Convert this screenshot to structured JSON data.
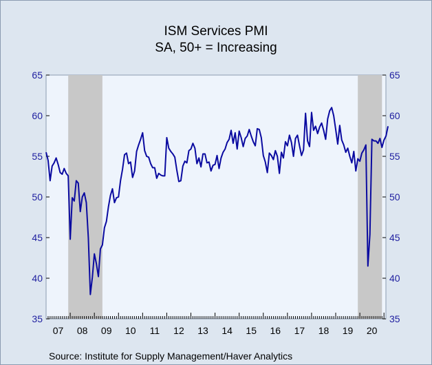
{
  "chart_data": {
    "type": "line",
    "title": "ISM Services PMI",
    "subtitle": "SA, 50+ = Increasing",
    "source": "Source:   Institute for Supply Management/Haver Analytics",
    "ylim": [
      35,
      65
    ],
    "yticks": [
      35,
      40,
      45,
      50,
      55,
      60,
      65
    ],
    "xlim": [
      2007.0,
      2021.08
    ],
    "xtick_labels": [
      "07",
      "08",
      "09",
      "10",
      "11",
      "12",
      "13",
      "14",
      "15",
      "16",
      "17",
      "18",
      "19",
      "20"
    ],
    "recessions": [
      [
        2007.917,
        2009.333
      ],
      [
        2019.917,
        2020.917
      ]
    ],
    "colors": {
      "line": "#0a0aa0",
      "plot_bg": "#eef4fc",
      "shade": "#c8c8c8",
      "frame_bg": "#dde6f0"
    },
    "series": [
      {
        "name": "ISM Services PMI",
        "x_start": 2007.0,
        "x_step": 0.0833333,
        "values": [
          55.5,
          54.5,
          52.0,
          53.8,
          54.2,
          54.8,
          54.0,
          53.0,
          52.8,
          53.5,
          52.9,
          52.6,
          44.8,
          49.9,
          49.5,
          52.0,
          51.7,
          48.2,
          50.0,
          50.5,
          49.3,
          45.0,
          38.0,
          40.1,
          43.0,
          41.8,
          40.2,
          43.6,
          44.1,
          46.2,
          47.0,
          48.8,
          50.2,
          51.0,
          49.3,
          49.9,
          50.0,
          52.0,
          53.4,
          55.2,
          55.4,
          54.1,
          54.3,
          52.4,
          53.2,
          55.6,
          56.4,
          57.1,
          57.9,
          55.7,
          55.0,
          54.9,
          54.1,
          53.6,
          53.6,
          52.3,
          52.9,
          52.7,
          52.6,
          52.6,
          57.3,
          56.0,
          55.6,
          55.3,
          54.9,
          53.3,
          51.9,
          52.0,
          53.8,
          54.4,
          54.2,
          55.7,
          55.9,
          56.6,
          56.0,
          54.1,
          54.8,
          53.7,
          55.3,
          55.3,
          54.2,
          54.3,
          53.2,
          53.9,
          54.0,
          55.1,
          53.5,
          54.8,
          55.5,
          55.9,
          56.7,
          57.1,
          58.2,
          56.6,
          57.9,
          55.9,
          58.1,
          57.3,
          56.2,
          57.2,
          57.5,
          58.3,
          57.5,
          56.8,
          56.3,
          58.4,
          58.3,
          57.3,
          55.1,
          54.3,
          53.0,
          55.4,
          55.1,
          54.6,
          55.7,
          55.0,
          52.9,
          55.5,
          54.8,
          56.8,
          56.3,
          57.6,
          56.7,
          55.0,
          57.2,
          57.6,
          56.3,
          55.1,
          55.8,
          60.3,
          56.9,
          56.2,
          60.4,
          58.2,
          58.7,
          57.8,
          58.6,
          59.1,
          58.2,
          57.1,
          59.6,
          60.6,
          61.0,
          60.0,
          58.3,
          56.5,
          58.8,
          57.0,
          56.4,
          55.5,
          56.0,
          55.0,
          54.2,
          55.6,
          53.2,
          54.7,
          54.4,
          55.4,
          55.8,
          56.4,
          41.5,
          45.4,
          57.1,
          56.9,
          56.9,
          56.6,
          57.2,
          56.1,
          57.0,
          57.5,
          58.7
        ]
      }
    ]
  }
}
